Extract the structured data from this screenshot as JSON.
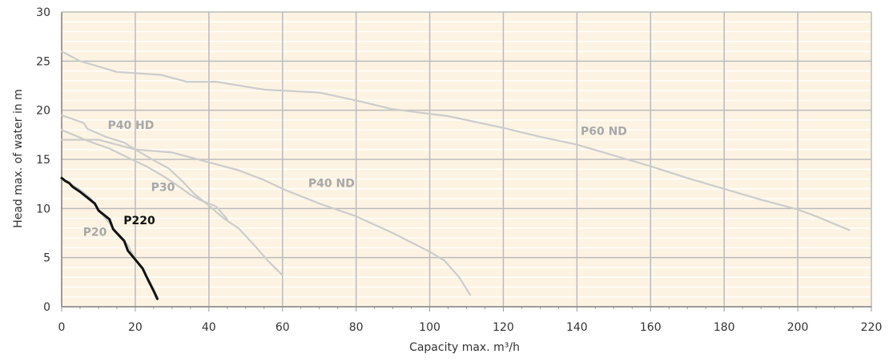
{
  "chart_data": {
    "type": "line",
    "title": "",
    "xlabel": "Capacity max. m³/h",
    "ylabel": "Head max. of water in m",
    "xlim": [
      0,
      220
    ],
    "ylim": [
      0,
      30
    ],
    "xticks": [
      0,
      20,
      40,
      60,
      80,
      100,
      120,
      140,
      160,
      180,
      200,
      220
    ],
    "yticks": [
      0,
      5,
      10,
      15,
      20,
      25,
      30
    ],
    "grid": true,
    "legend": "none",
    "colors": {
      "background": "#fdf3e3",
      "stripe": "#ffffff",
      "grid_major": "#bbbbbb",
      "highlight_series": "#111111",
      "other_series": "#cccccc",
      "other_label": "#a8a8a8"
    },
    "series": [
      {
        "name": "P60 ND",
        "label_at": [
          141,
          17.5
        ],
        "highlight": false,
        "points": [
          [
            0,
            26
          ],
          [
            5,
            25
          ],
          [
            15,
            23.9
          ],
          [
            27,
            23.6
          ],
          [
            34,
            22.9
          ],
          [
            42,
            22.9
          ],
          [
            55,
            22.1
          ],
          [
            70,
            21.8
          ],
          [
            80,
            21
          ],
          [
            90,
            20.1
          ],
          [
            105,
            19.4
          ],
          [
            120,
            18.2
          ],
          [
            130,
            17.3
          ],
          [
            140,
            16.5
          ],
          [
            150,
            15.4
          ],
          [
            160,
            14.3
          ],
          [
            170,
            13.1
          ],
          [
            180,
            12
          ],
          [
            190,
            10.9
          ],
          [
            200,
            9.9
          ],
          [
            205,
            9.2
          ],
          [
            214,
            7.8
          ]
        ]
      },
      {
        "name": "P40 ND",
        "label_at": [
          67,
          12.2
        ],
        "highlight": false,
        "points": [
          [
            0,
            17
          ],
          [
            10,
            17
          ],
          [
            20,
            16
          ],
          [
            30,
            15.7
          ],
          [
            35,
            15.2
          ],
          [
            40,
            14.7
          ],
          [
            48,
            13.9
          ],
          [
            55,
            12.9
          ],
          [
            60,
            12
          ],
          [
            70,
            10.5
          ],
          [
            80,
            9.2
          ],
          [
            90,
            7.5
          ],
          [
            100,
            5.6
          ],
          [
            104,
            4.7
          ],
          [
            108,
            3
          ],
          [
            111,
            1.2
          ]
        ]
      },
      {
        "name": "P40 HD",
        "label_at": [
          12.5,
          18.1
        ],
        "highlight": false,
        "points": [
          [
            0,
            19.5
          ],
          [
            6,
            18.7
          ],
          [
            7,
            18.1
          ],
          [
            12,
            17.3
          ],
          [
            17,
            16.7
          ],
          [
            20,
            16
          ],
          [
            25,
            14.9
          ],
          [
            29,
            14.1
          ],
          [
            33,
            12.7
          ],
          [
            36,
            11.5
          ],
          [
            40,
            10.3
          ],
          [
            44,
            9
          ],
          [
            48,
            8
          ],
          [
            52,
            6.4
          ],
          [
            56,
            4.7
          ],
          [
            60,
            3.2
          ]
        ]
      },
      {
        "name": "P30",
        "label_at": [
          24.3,
          11.8
        ],
        "highlight": false,
        "points": [
          [
            0,
            18
          ],
          [
            7,
            16.9
          ],
          [
            13,
            16.1
          ],
          [
            19,
            15
          ],
          [
            23,
            14.3
          ],
          [
            28,
            13.2
          ],
          [
            32,
            12.2
          ],
          [
            35,
            11.4
          ],
          [
            38,
            10.8
          ],
          [
            42,
            10.2
          ],
          [
            45,
            8.9
          ]
        ]
      },
      {
        "name": "P20",
        "label_at": [
          5.8,
          7.2
        ],
        "highlight": false,
        "points": [
          [
            0,
            13
          ],
          [
            2,
            12.6
          ],
          [
            5,
            11.9
          ],
          [
            8,
            11
          ],
          [
            10,
            9.8
          ],
          [
            13,
            8.5
          ],
          [
            16,
            7
          ],
          [
            18,
            6.3
          ],
          [
            20,
            4.8
          ],
          [
            22,
            3.8
          ],
          [
            24,
            2.5
          ],
          [
            26,
            1
          ]
        ]
      },
      {
        "name": "P220",
        "label_at": [
          16.8,
          8.4
        ],
        "highlight": true,
        "points": [
          [
            0,
            13.1
          ],
          [
            1,
            12.8
          ],
          [
            2,
            12.6
          ],
          [
            3,
            12.2
          ],
          [
            5,
            11.7
          ],
          [
            7,
            11.1
          ],
          [
            9,
            10.5
          ],
          [
            10,
            9.8
          ],
          [
            13,
            8.9
          ],
          [
            14,
            7.9
          ],
          [
            17,
            6.7
          ],
          [
            18,
            5.7
          ],
          [
            20,
            4.8
          ],
          [
            22,
            3.9
          ],
          [
            23,
            3.1
          ],
          [
            25,
            1.6
          ],
          [
            26,
            0.8
          ]
        ]
      }
    ]
  }
}
